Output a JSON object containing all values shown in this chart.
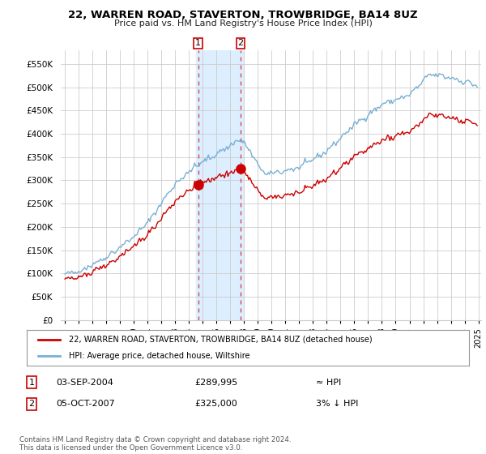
{
  "title": "22, WARREN ROAD, STAVERTON, TROWBRIDGE, BA14 8UZ",
  "subtitle": "Price paid vs. HM Land Registry's House Price Index (HPI)",
  "background_color": "#ffffff",
  "plot_bg_color": "#ffffff",
  "grid_color": "#cccccc",
  "ylim": [
    0,
    580000
  ],
  "yticks": [
    0,
    50000,
    100000,
    150000,
    200000,
    250000,
    300000,
    350000,
    400000,
    450000,
    500000,
    550000
  ],
  "ytick_labels": [
    "£0",
    "£50K",
    "£100K",
    "£150K",
    "£200K",
    "£250K",
    "£300K",
    "£350K",
    "£400K",
    "£450K",
    "£500K",
    "£550K"
  ],
  "sale1_date_x": 2004.67,
  "sale1_price": 289995,
  "sale1_label": "1",
  "sale2_date_x": 2007.75,
  "sale2_price": 325000,
  "sale2_label": "2",
  "highlight_xmin": 2004.5,
  "highlight_xmax": 2007.92,
  "highlight_color": "#ddeeff",
  "sale_line_color": "#cc0000",
  "hpi_line_color": "#7ab0d4",
  "legend_label1": "22, WARREN ROAD, STAVERTON, TROWBRIDGE, BA14 8UZ (detached house)",
  "legend_label2": "HPI: Average price, detached house, Wiltshire",
  "footnote": "Contains HM Land Registry data © Crown copyright and database right 2024.\nThis data is licensed under the Open Government Licence v3.0.",
  "table_row1_date": "03-SEP-2004",
  "table_row1_price": "£289,995",
  "table_row1_hpi": "≈ HPI",
  "table_row2_date": "05-OCT-2007",
  "table_row2_price": "£325,000",
  "table_row2_hpi": "3% ↓ HPI",
  "xlim": [
    1994.7,
    2025.2
  ],
  "xtick_years": [
    1995,
    1996,
    1997,
    1998,
    1999,
    2000,
    2001,
    2002,
    2003,
    2004,
    2005,
    2006,
    2007,
    2008,
    2009,
    2010,
    2011,
    2012,
    2013,
    2014,
    2015,
    2016,
    2017,
    2018,
    2019,
    2020,
    2021,
    2022,
    2023,
    2024,
    2025
  ]
}
